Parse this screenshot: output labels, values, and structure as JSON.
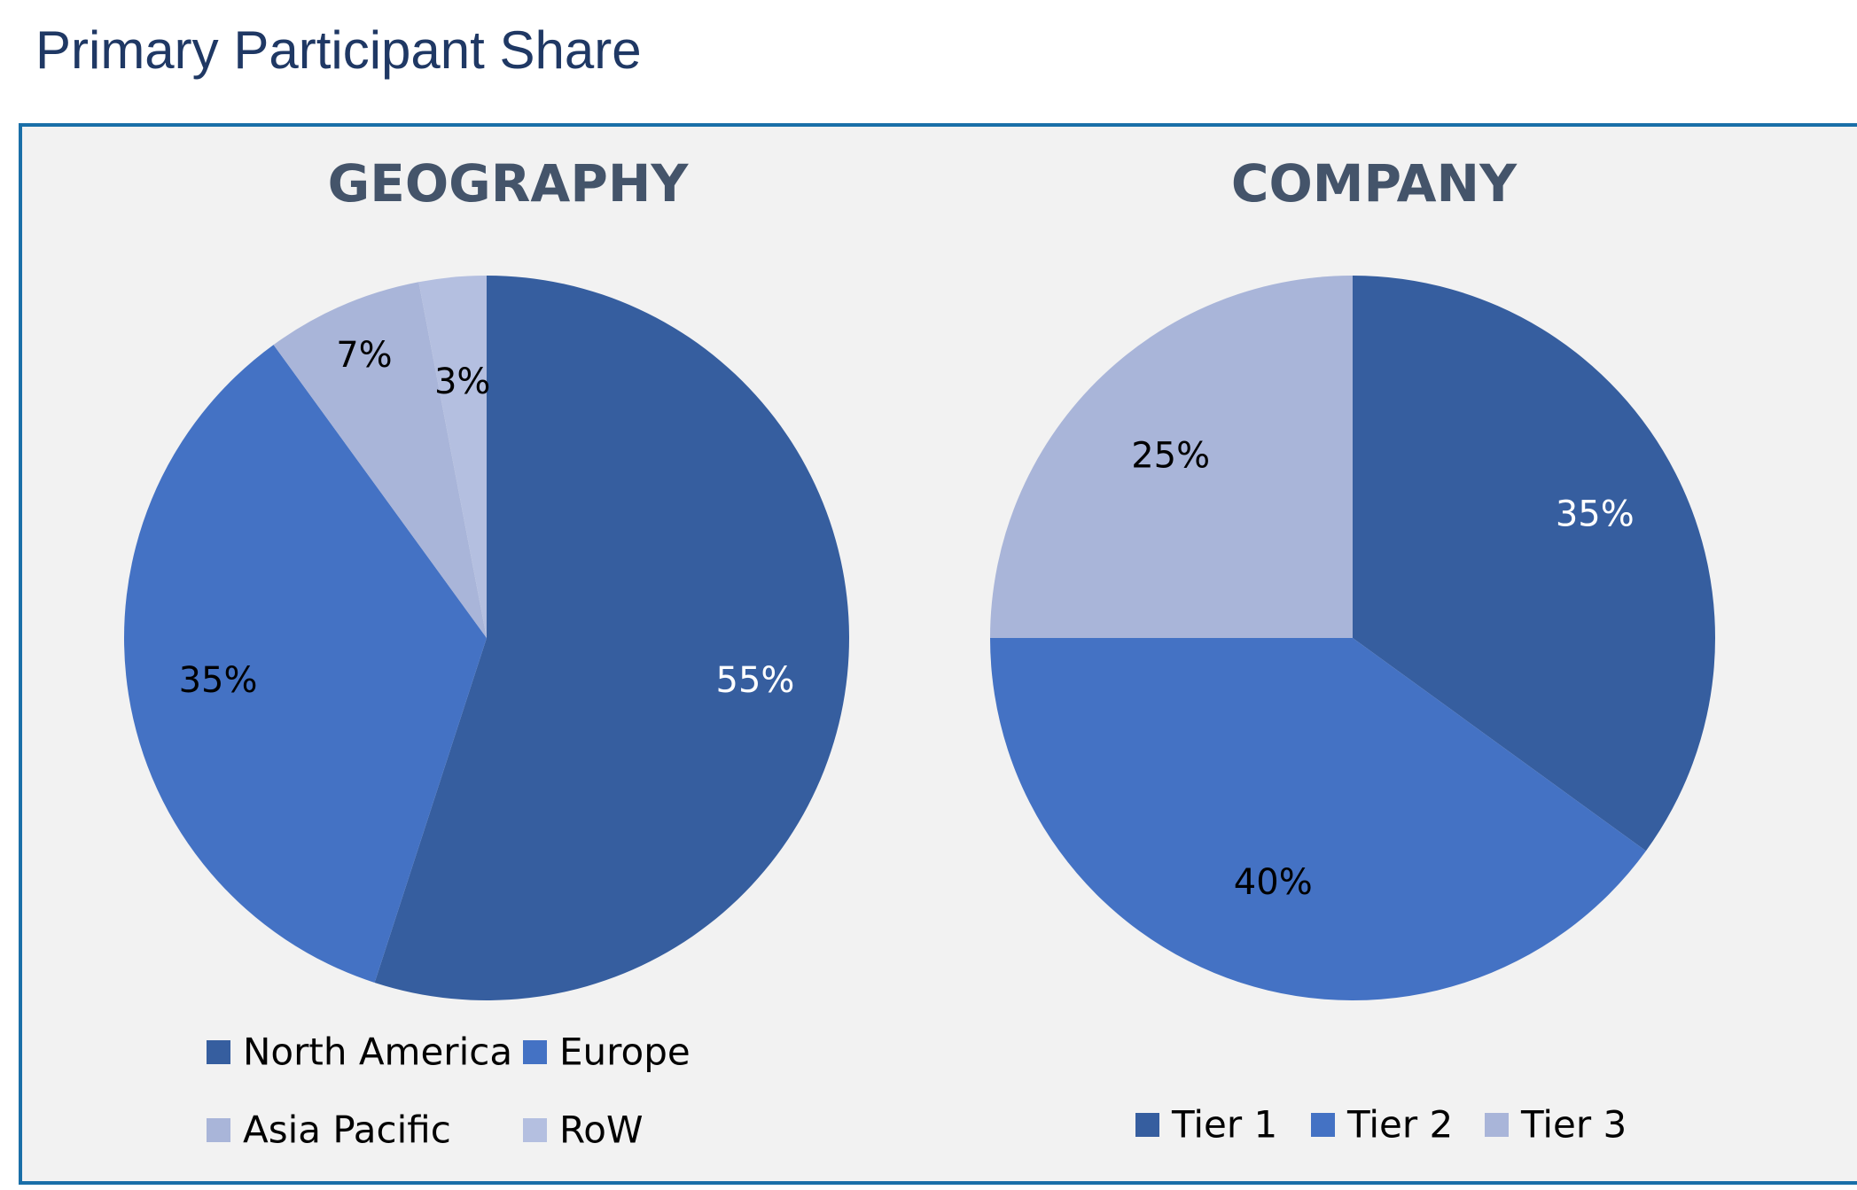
{
  "header": {
    "title": "Primary Participant Share"
  },
  "chart_data": [
    {
      "type": "pie",
      "title": "GEOGRAPHY",
      "categories": [
        "North America",
        "Europe",
        "Asia Pacific",
        "RoW"
      ],
      "values": [
        55,
        35,
        7,
        3
      ],
      "labels": [
        "55%",
        "35%",
        "7%",
        "3%"
      ],
      "colors": [
        "#365e9f",
        "#4472c4",
        "#a9b5d9",
        "#b4bfe0"
      ],
      "label_colors": [
        "#ffffff",
        "#000000",
        "#000000",
        "#000000"
      ],
      "start_angle_deg": 0,
      "direction": "clockwise",
      "legend_position": "bottom"
    },
    {
      "type": "pie",
      "title": "COMPANY",
      "categories": [
        "Tier 1",
        "Tier 2",
        "Tier 3"
      ],
      "values": [
        35,
        40,
        25
      ],
      "labels": [
        "35%",
        "40%",
        "25%"
      ],
      "colors": [
        "#365e9f",
        "#4472c4",
        "#a9b5d9"
      ],
      "label_colors": [
        "#ffffff",
        "#000000",
        "#000000"
      ],
      "start_angle_deg": 0,
      "direction": "clockwise",
      "legend_position": "bottom"
    }
  ]
}
